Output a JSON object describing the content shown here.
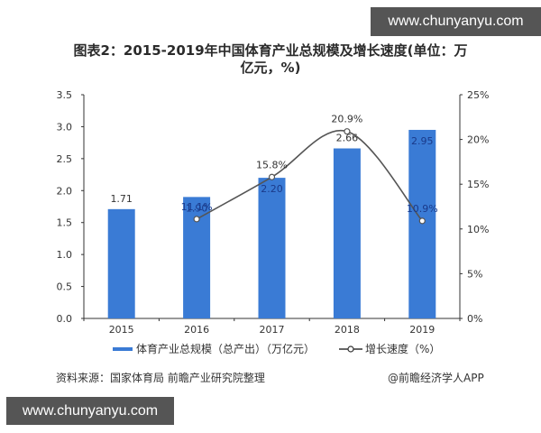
{
  "watermarks": {
    "top": "www.chunyanyu.com",
    "bottom": "www.chunyanyu.com"
  },
  "header": {
    "title_line1": "图表2：2015-2019年中国体育产业总规模及增长速度(单位：万",
    "title_line2": "亿元，%)"
  },
  "legend": {
    "bar_label": "体育产业总规模（总产出）（万亿元）",
    "line_label": "增长速度（%）"
  },
  "footer": {
    "source": "资料来源：国家体育局 前瞻产业研究院整理",
    "credit": "@前瞻经济学人APP"
  },
  "colors": {
    "bar": "#3a7bd5",
    "line": "#555555",
    "axis": "#333333"
  },
  "chart_data": {
    "type": "bar+line",
    "title": "图表2：2015-2019年中国体育产业总规模及增长速度(单位：万亿元，%)",
    "categories": [
      "2015",
      "2016",
      "2017",
      "2018",
      "2019"
    ],
    "series": [
      {
        "name": "体育产业总规模（总产出）（万亿元）",
        "type": "bar",
        "axis": "left",
        "values": [
          1.71,
          1.9,
          2.2,
          2.66,
          2.95
        ],
        "labels": [
          "1.71",
          "1.90",
          "2.20",
          "2.66",
          "2.95"
        ]
      },
      {
        "name": "增长速度（%）",
        "type": "line",
        "axis": "right",
        "values": [
          null,
          11.1,
          15.8,
          20.9,
          10.9
        ],
        "labels": [
          "",
          "11.1%",
          "15.8%",
          "20.9%",
          "10.9%"
        ]
      }
    ],
    "left_axis": {
      "ylim": [
        0,
        3.5
      ],
      "ticks": [
        "0.0",
        "0.5",
        "1.0",
        "1.5",
        "2.0",
        "2.5",
        "3.0",
        "3.5"
      ]
    },
    "right_axis": {
      "ylim": [
        0,
        25
      ],
      "ticks": [
        "0%",
        "5%",
        "10%",
        "15%",
        "20%",
        "25%"
      ]
    },
    "grid": false,
    "legend_position": "bottom"
  }
}
